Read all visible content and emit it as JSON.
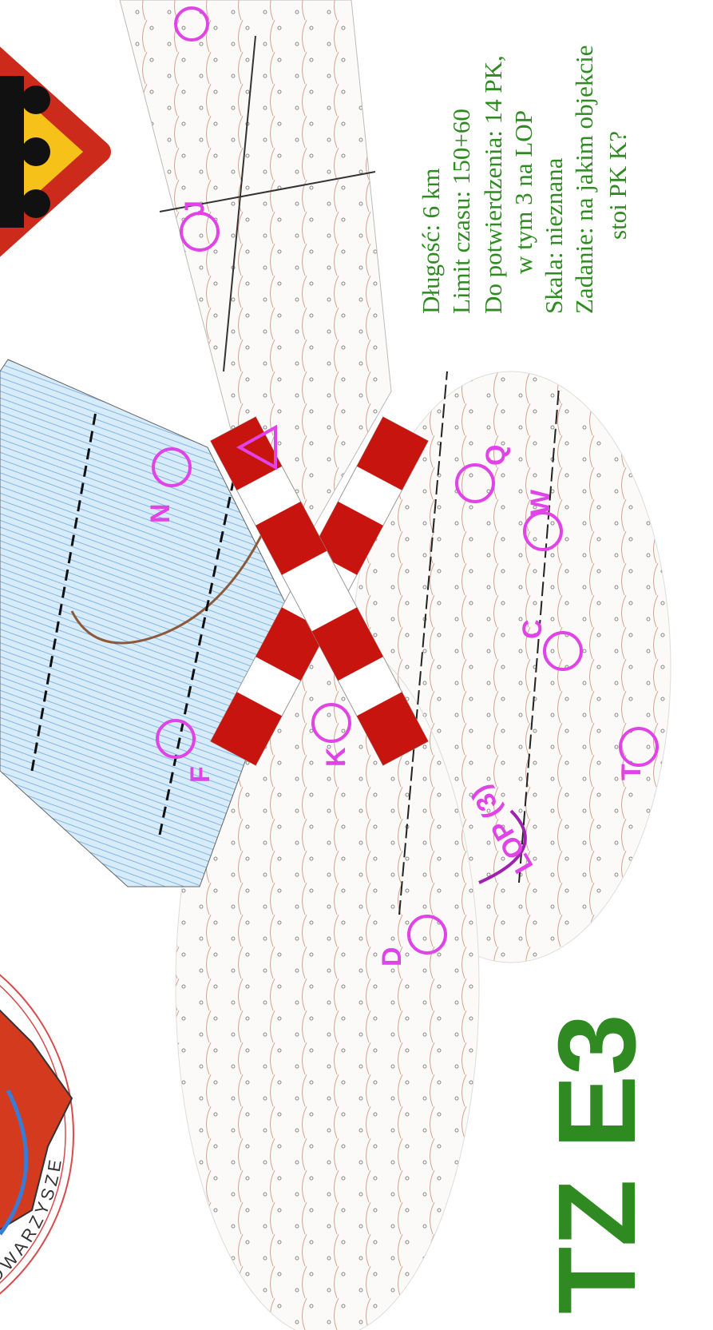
{
  "title": "TZ E3",
  "info": [
    "Długość: 6 km",
    "Limit czasu: 150+60",
    "Do potwierdzenia: 14 PK,",
    "w tym 3 na LOP",
    "Skala: nieznana",
    "Zadanie: na jakim objekcie",
    "stoi PK K?"
  ],
  "logo_text": "STOWARZYSZE",
  "controls": [
    "J",
    "N",
    "F",
    "K",
    "D",
    "Q",
    "W",
    "C",
    "T"
  ],
  "lop_label": "LOP (3)"
}
